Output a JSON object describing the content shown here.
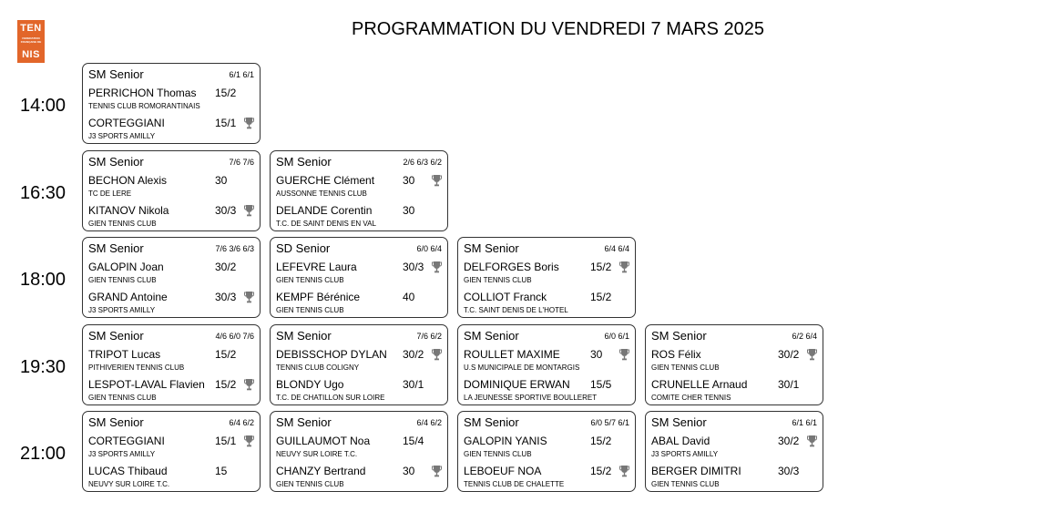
{
  "logo": {
    "line1": "TEN",
    "line2": "NIS",
    "small_text": "FÉDÉRATION FRANÇAISE DE TENNIS"
  },
  "title": "PROGRAMMATION DU VENDREDI 7 MARS 2025",
  "slots": [
    {
      "time": "14:00",
      "matches": [
        {
          "category": "SM Senior",
          "score": "6/1 6/1",
          "players": [
            {
              "name": "PERRICHON Thomas",
              "rank": "15/2",
              "club": "TENNIS CLUB ROMORANTINAIS",
              "winner": false
            },
            {
              "name": "CORTEGGIANI",
              "rank": "15/1",
              "club": "J3 SPORTS AMILLY",
              "winner": true
            }
          ]
        }
      ]
    },
    {
      "time": "16:30",
      "matches": [
        {
          "category": "SM Senior",
          "score": "7/6 7/6",
          "players": [
            {
              "name": "BECHON Alexis",
              "rank": "30",
              "club": "TC DE LERE",
              "winner": false
            },
            {
              "name": "KITANOV Nikola",
              "rank": "30/3",
              "club": "GIEN TENNIS CLUB",
              "winner": true
            }
          ]
        },
        {
          "category": "SM Senior",
          "score": "2/6 6/3 6/2",
          "players": [
            {
              "name": "GUERCHE Clément",
              "rank": "30",
              "club": "AUSSONNE TENNIS CLUB",
              "winner": true
            },
            {
              "name": "DELANDE Corentin",
              "rank": "30",
              "club": "T.C. DE SAINT DENIS EN VAL",
              "winner": false
            }
          ]
        }
      ]
    },
    {
      "time": "18:00",
      "matches": [
        {
          "category": "SM Senior",
          "score": "7/6 3/6 6/3",
          "players": [
            {
              "name": "GALOPIN Joan",
              "rank": "30/2",
              "club": "GIEN TENNIS CLUB",
              "winner": false
            },
            {
              "name": "GRAND Antoine",
              "rank": "30/3",
              "club": "J3 SPORTS AMILLY",
              "winner": true
            }
          ]
        },
        {
          "category": "SD Senior",
          "score": "6/0 6/4",
          "players": [
            {
              "name": "LEFEVRE Laura",
              "rank": "30/3",
              "club": "GIEN TENNIS CLUB",
              "winner": true
            },
            {
              "name": "KEMPF Bérénice",
              "rank": "40",
              "club": "GIEN TENNIS CLUB",
              "winner": false
            }
          ]
        },
        {
          "category": "SM Senior",
          "score": "6/4 6/4",
          "players": [
            {
              "name": "DELFORGES Boris",
              "rank": "15/2",
              "club": "GIEN TENNIS CLUB",
              "winner": true
            },
            {
              "name": "COLLIOT Franck",
              "rank": "15/2",
              "club": "T.C. SAINT DENIS DE L'HOTEL",
              "winner": false
            }
          ]
        }
      ]
    },
    {
      "time": "19:30",
      "matches": [
        {
          "category": "SM Senior",
          "score": "4/6 6/0 7/6",
          "players": [
            {
              "name": "TRIPOT Lucas",
              "rank": "15/2",
              "club": "PITHIVERIEN TENNIS CLUB",
              "winner": false
            },
            {
              "name": "LESPOT-LAVAL Flavien",
              "rank": "15/2",
              "club": "GIEN TENNIS CLUB",
              "winner": true
            }
          ]
        },
        {
          "category": "SM Senior",
          "score": "7/6 6/2",
          "players": [
            {
              "name": "DEBISSCHOP DYLAN",
              "rank": "30/2",
              "club": "TENNIS CLUB COLIGNY",
              "winner": true
            },
            {
              "name": "BLONDY Ugo",
              "rank": "30/1",
              "club": "T.C. DE CHATILLON SUR LOIRE",
              "winner": false
            }
          ]
        },
        {
          "category": "SM Senior",
          "score": "6/0 6/1",
          "players": [
            {
              "name": "ROULLET MAXIME",
              "rank": "30",
              "club": "U.S MUNICIPALE DE MONTARGIS",
              "winner": true
            },
            {
              "name": "DOMINIQUE ERWAN",
              "rank": "15/5",
              "club": "LA JEUNESSE SPORTIVE BOULLERET",
              "winner": false
            }
          ]
        },
        {
          "category": "SM Senior",
          "score": "6/2 6/4",
          "players": [
            {
              "name": "ROS Félix",
              "rank": "30/2",
              "club": "GIEN TENNIS CLUB",
              "winner": true
            },
            {
              "name": "CRUNELLE Arnaud",
              "rank": "30/1",
              "club": "COMITE CHER TENNIS",
              "winner": false
            }
          ]
        }
      ]
    },
    {
      "time": "21:00",
      "matches": [
        {
          "category": "SM Senior",
          "score": "6/4 6/2",
          "players": [
            {
              "name": "CORTEGGIANI",
              "rank": "15/1",
              "club": "J3 SPORTS AMILLY",
              "winner": true
            },
            {
              "name": "LUCAS Thibaud",
              "rank": "15",
              "club": "NEUVY SUR LOIRE T.C.",
              "winner": false
            }
          ]
        },
        {
          "category": "SM Senior",
          "score": "6/4 6/2",
          "players": [
            {
              "name": "GUILLAUMOT Noa",
              "rank": "15/4",
              "club": "NEUVY SUR LOIRE T.C.",
              "winner": false
            },
            {
              "name": "CHANZY Bertrand",
              "rank": "30",
              "club": "GIEN TENNIS CLUB",
              "winner": true
            }
          ]
        },
        {
          "category": "SM Senior",
          "score": "6/0 5/7 6/1",
          "players": [
            {
              "name": "GALOPIN YANIS",
              "rank": "15/2",
              "club": "GIEN TENNIS CLUB",
              "winner": false
            },
            {
              "name": "LEBOEUF NOA",
              "rank": "15/2",
              "club": "TENNIS CLUB DE CHALETTE",
              "winner": true
            }
          ]
        },
        {
          "category": "SM Senior",
          "score": "6/1 6/1",
          "players": [
            {
              "name": "ABAL David",
              "rank": "30/2",
              "club": "J3 SPORTS AMILLY",
              "winner": true
            },
            {
              "name": "BERGER DIMITRI",
              "rank": "30/3",
              "club": "GIEN TENNIS CLUB",
              "winner": false
            }
          ]
        }
      ]
    }
  ]
}
